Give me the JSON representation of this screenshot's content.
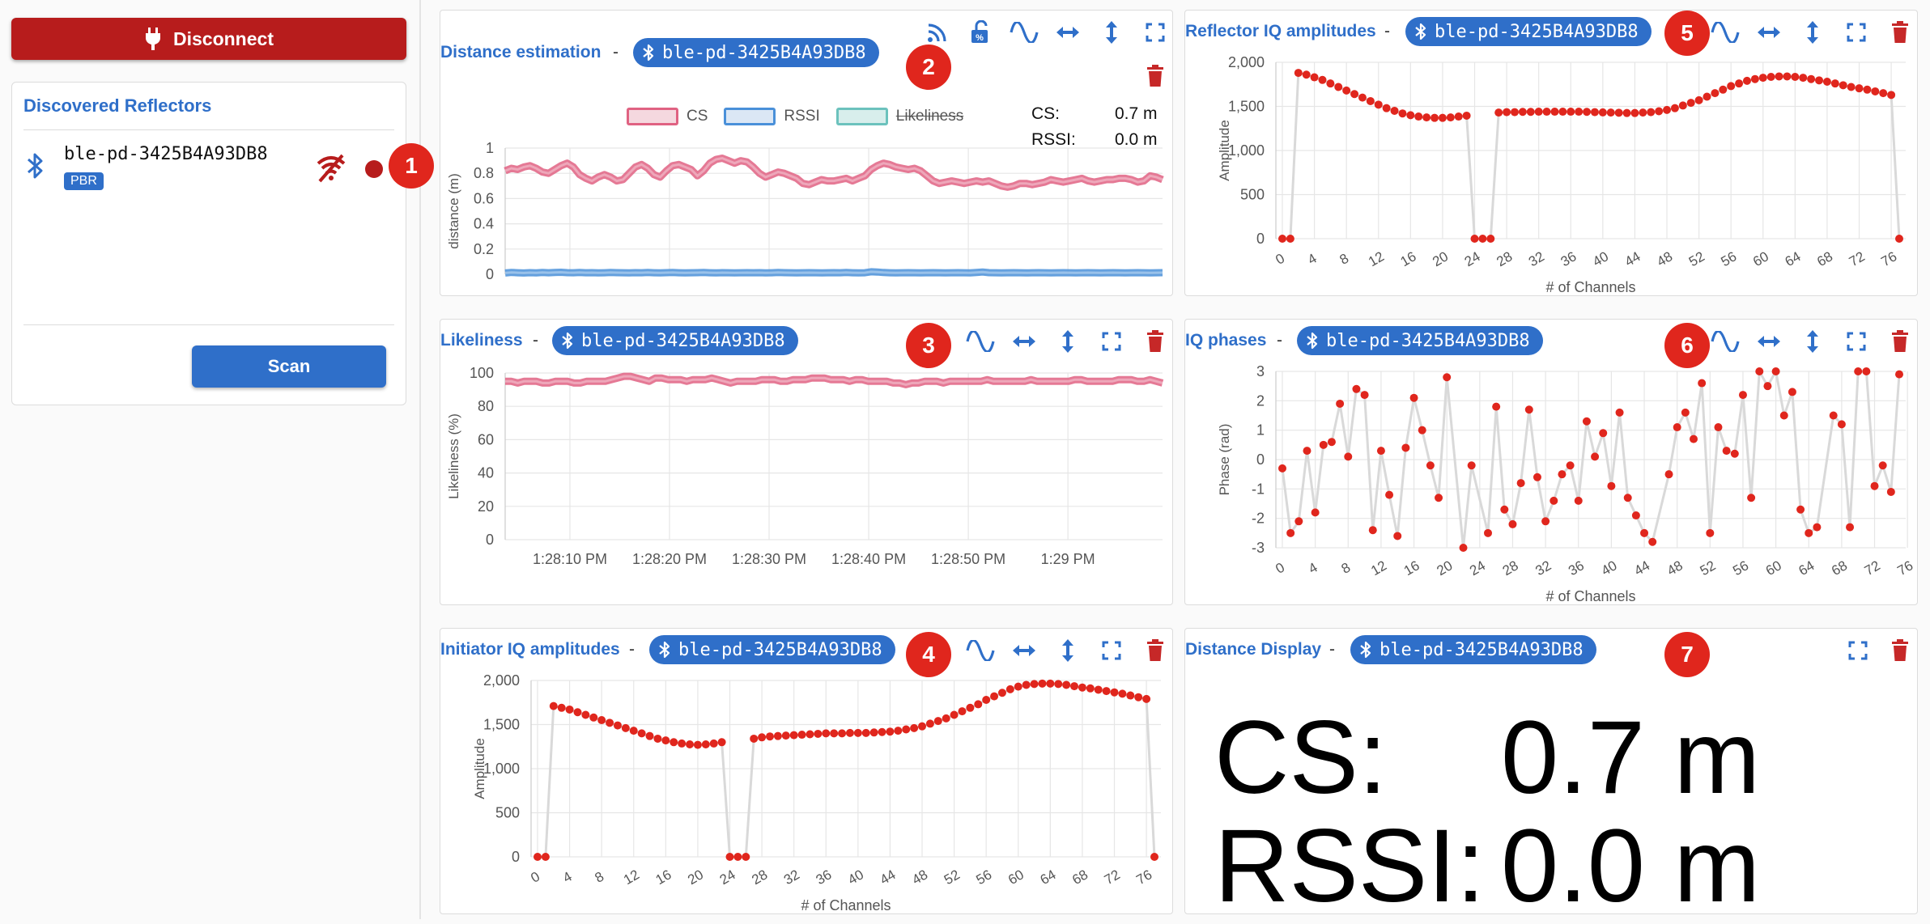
{
  "left": {
    "disconnect_label": "Disconnect",
    "reflectors_title": "Discovered Reflectors",
    "device_name": "ble-pd-3425B4A93DB8",
    "device_badge": "PBR",
    "scan_label": "Scan",
    "marker": "1"
  },
  "device": "ble-pd-3425B4A93DB8",
  "panels": {
    "distance": {
      "title": "Distance estimation",
      "marker": "2"
    },
    "likeliness": {
      "title": "Likeliness",
      "marker": "3"
    },
    "init_iq": {
      "title": "Initiator IQ amplitudes",
      "marker": "4"
    },
    "refl_iq": {
      "title": "Reflector IQ amplitudes",
      "marker": "5"
    },
    "iq_phase": {
      "title": "IQ phases",
      "marker": "6"
    },
    "display": {
      "title": "Distance Display",
      "marker": "7"
    }
  },
  "separator": "-",
  "legend": {
    "cs": "CS",
    "rssi": "RSSI",
    "likeliness": "Likeliness"
  },
  "readout": {
    "cs_label": "CS:",
    "cs_value": "0.7 m",
    "rssi_label": "RSSI:",
    "rssi_value": "0.0 m"
  },
  "big": {
    "cs_label": "CS:",
    "cs_value": "0.7 m",
    "rssi_label": "RSSI:",
    "rssi_value": "0.0 m"
  },
  "colors": {
    "accent": "#2f6fc9",
    "danger": "#b71c1c",
    "marker": "#e0261d",
    "cs": "#e06282",
    "rssi": "#4a90d9",
    "point": "#e0261d"
  },
  "chart_data": [
    {
      "id": "distance",
      "type": "line",
      "ylabel": "distance (m)",
      "ylim": [
        0,
        1.0
      ],
      "yticks": [
        0,
        0.2,
        0.4,
        0.6,
        0.8,
        1.0
      ],
      "series": [
        {
          "name": "CS",
          "values": [
            0.82,
            0.84,
            0.83,
            0.85,
            0.86,
            0.84,
            0.81,
            0.8,
            0.83,
            0.86,
            0.88,
            0.85,
            0.79,
            0.76,
            0.74,
            0.77,
            0.79,
            0.77,
            0.74,
            0.75,
            0.8,
            0.85,
            0.87,
            0.84,
            0.79,
            0.77,
            0.82,
            0.86,
            0.87,
            0.85,
            0.83,
            0.78,
            0.82,
            0.88,
            0.91,
            0.92,
            0.9,
            0.88,
            0.9,
            0.89,
            0.85,
            0.8,
            0.77,
            0.79,
            0.81,
            0.8,
            0.78,
            0.76,
            0.72,
            0.71,
            0.73,
            0.75,
            0.74,
            0.74,
            0.75,
            0.76,
            0.74,
            0.76,
            0.78,
            0.83,
            0.86,
            0.88,
            0.87,
            0.85,
            0.84,
            0.83,
            0.84,
            0.82,
            0.78,
            0.74,
            0.72,
            0.73,
            0.74,
            0.73,
            0.72,
            0.73,
            0.74,
            0.73,
            0.74,
            0.72,
            0.7,
            0.69,
            0.7,
            0.72,
            0.72,
            0.71,
            0.72,
            0.73,
            0.75,
            0.74,
            0.73,
            0.74,
            0.75,
            0.76,
            0.74,
            0.73,
            0.74,
            0.75,
            0.75,
            0.76,
            0.76,
            0.75,
            0.73,
            0.74,
            0.78,
            0.77,
            0.75
          ]
        },
        {
          "name": "RSSI",
          "values": [
            0.01,
            0.015,
            0.012,
            0.01,
            0.013,
            0.011,
            0.014,
            0.012,
            0.015,
            0.016,
            0.013,
            0.012,
            0.014,
            0.012,
            0.013,
            0.011,
            0.012,
            0.014,
            0.013,
            0.012,
            0.011,
            0.013,
            0.012,
            0.014,
            0.012,
            0.011,
            0.013,
            0.014,
            0.012,
            0.011,
            0.012,
            0.013,
            0.014,
            0.012,
            0.011,
            0.013,
            0.012,
            0.011,
            0.012,
            0.013,
            0.012,
            0.013,
            0.011,
            0.012,
            0.014,
            0.013,
            0.012,
            0.011,
            0.012,
            0.013,
            0.012,
            0.011,
            0.012,
            0.013,
            0.012,
            0.014,
            0.012,
            0.011,
            0.012,
            0.02,
            0.018,
            0.014,
            0.012,
            0.011,
            0.012,
            0.013,
            0.012,
            0.011,
            0.012,
            0.013,
            0.012,
            0.011,
            0.012,
            0.013,
            0.012,
            0.011,
            0.014,
            0.018,
            0.013,
            0.012,
            0.011,
            0.012,
            0.013,
            0.012,
            0.011,
            0.012,
            0.013,
            0.012,
            0.011,
            0.012,
            0.013,
            0.012,
            0.011,
            0.012,
            0.013,
            0.012,
            0.011,
            0.012,
            0.013,
            0.012,
            0.011,
            0.012,
            0.013,
            0.012,
            0.011,
            0.012,
            0.013
          ]
        }
      ]
    },
    {
      "id": "likeliness",
      "type": "line",
      "ylabel": "Likeliness (%)",
      "ylim": [
        0,
        100
      ],
      "yticks": [
        0,
        20,
        40,
        60,
        80,
        100
      ],
      "xtick_labels": [
        "1:28:10 PM",
        "1:28:20 PM",
        "1:28:30 PM",
        "1:28:40 PM",
        "1:28:50 PM",
        "1:29 PM"
      ],
      "series": [
        {
          "name": "Likeliness",
          "values": [
            95,
            95,
            94,
            95,
            95,
            95,
            94,
            94,
            95,
            95,
            95,
            94,
            94,
            95,
            95,
            95,
            95,
            96,
            97,
            98,
            98,
            97,
            96,
            95,
            97,
            97,
            96,
            96,
            96,
            95,
            96,
            96,
            96,
            97,
            96,
            95,
            94,
            95,
            95,
            95,
            95,
            96,
            96,
            96,
            95,
            95,
            96,
            96,
            96,
            97,
            97,
            97,
            96,
            96,
            96,
            95,
            96,
            96,
            95,
            95,
            95,
            95,
            94,
            94,
            93,
            94,
            94,
            95,
            95,
            95,
            94,
            95,
            95,
            95,
            95,
            95,
            95,
            96,
            95,
            95,
            95,
            95,
            95,
            95,
            96,
            95,
            95,
            95,
            95,
            95,
            95,
            96,
            96,
            95,
            95,
            95,
            95,
            95,
            96,
            96,
            96,
            95,
            95,
            96,
            95,
            94
          ]
        }
      ]
    },
    {
      "id": "init_iq",
      "type": "line",
      "xlabel": "# of Channels",
      "ylabel": "Amplitude",
      "ylim": [
        0,
        2000
      ],
      "yticks": [
        0,
        500,
        1000,
        1500,
        2000
      ],
      "ytick_labels": [
        "0",
        "500",
        "1,000",
        "1,500",
        "2,000"
      ],
      "xticks": [
        0,
        4,
        8,
        12,
        16,
        20,
        24,
        28,
        32,
        36,
        40,
        44,
        48,
        52,
        56,
        60,
        64,
        68,
        72,
        76
      ],
      "values": [
        0,
        0,
        1710,
        1690,
        1670,
        1640,
        1610,
        1580,
        1550,
        1520,
        1490,
        1460,
        1430,
        1400,
        1370,
        1340,
        1320,
        1300,
        1285,
        1275,
        1270,
        1275,
        1285,
        1300,
        0,
        0,
        0,
        1340,
        1355,
        1365,
        1370,
        1375,
        1380,
        1385,
        1390,
        1395,
        1400,
        1400,
        1400,
        1405,
        1405,
        1405,
        1410,
        1415,
        1420,
        1430,
        1445,
        1460,
        1480,
        1510,
        1540,
        1570,
        1610,
        1650,
        1690,
        1730,
        1780,
        1820,
        1860,
        1900,
        1930,
        1950,
        1960,
        1965,
        1965,
        1960,
        1950,
        1935,
        1920,
        1910,
        1895,
        1880,
        1865,
        1850,
        1830,
        1810,
        1790,
        0
      ]
    },
    {
      "id": "refl_iq",
      "type": "line",
      "xlabel": "# of Channels",
      "ylabel": "Amplitude",
      "ylim": [
        0,
        2000
      ],
      "yticks": [
        0,
        500,
        1000,
        1500,
        2000
      ],
      "ytick_labels": [
        "0",
        "500",
        "1,000",
        "1,500",
        "2,000"
      ],
      "xticks": [
        0,
        4,
        8,
        12,
        16,
        20,
        24,
        28,
        32,
        36,
        40,
        44,
        48,
        52,
        56,
        60,
        64,
        68,
        72,
        76
      ],
      "values": [
        0,
        0,
        1880,
        1860,
        1830,
        1800,
        1760,
        1720,
        1680,
        1640,
        1600,
        1560,
        1520,
        1480,
        1450,
        1420,
        1400,
        1385,
        1375,
        1370,
        1370,
        1375,
        1385,
        1395,
        0,
        0,
        0,
        1430,
        1435,
        1435,
        1438,
        1438,
        1440,
        1440,
        1440,
        1440,
        1440,
        1440,
        1438,
        1435,
        1432,
        1430,
        1428,
        1425,
        1425,
        1430,
        1435,
        1445,
        1460,
        1480,
        1510,
        1540,
        1570,
        1610,
        1650,
        1690,
        1730,
        1760,
        1790,
        1810,
        1825,
        1835,
        1840,
        1840,
        1835,
        1825,
        1810,
        1795,
        1780,
        1760,
        1740,
        1720,
        1705,
        1690,
        1670,
        1650,
        1630,
        0
      ]
    },
    {
      "id": "iq_phase",
      "type": "scatter",
      "xlabel": "# of Channels",
      "ylabel": "Phase (rad)",
      "ylim": [
        -3,
        3
      ],
      "yticks": [
        -3,
        -2,
        -1,
        0,
        1,
        2,
        3
      ],
      "xticks": [
        0,
        4,
        8,
        12,
        16,
        20,
        24,
        28,
        32,
        36,
        40,
        44,
        48,
        52,
        56,
        60,
        64,
        68,
        72,
        76
      ],
      "values": [
        -0.3,
        -2.5,
        -2.1,
        0.3,
        -1.8,
        0.5,
        0.6,
        1.9,
        0.1,
        2.4,
        2.2,
        -2.4,
        0.3,
        -1.2,
        -2.6,
        0.4,
        2.1,
        1.0,
        -0.2,
        -1.3,
        2.8,
        null,
        -3.0,
        -0.2,
        null,
        -2.5,
        1.8,
        -1.7,
        -2.2,
        -0.8,
        1.7,
        -0.6,
        -2.1,
        -1.4,
        -0.5,
        -0.2,
        -1.4,
        1.3,
        0.1,
        0.9,
        -0.9,
        1.6,
        -1.3,
        -1.9,
        -2.5,
        -2.8,
        null,
        -0.5,
        1.1,
        1.6,
        0.7,
        2.6,
        -2.5,
        1.1,
        0.3,
        0.2,
        2.2,
        -1.3,
        3.0,
        2.5,
        3.0,
        1.5,
        2.3,
        -1.7,
        -2.5,
        -2.3,
        null,
        1.5,
        1.2,
        -2.3,
        3.0,
        3.0,
        -0.9,
        -0.2,
        -1.1,
        2.9
      ]
    }
  ]
}
